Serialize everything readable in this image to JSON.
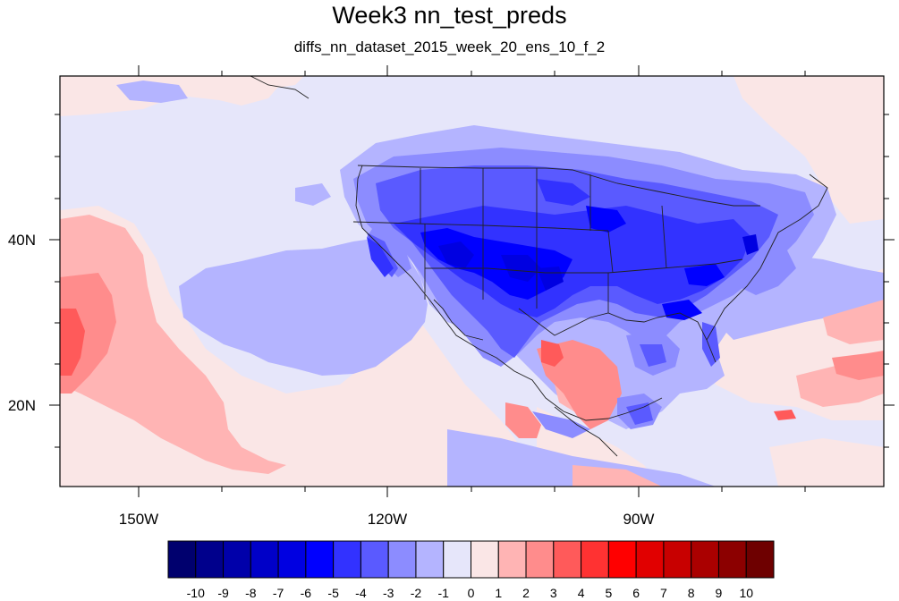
{
  "title": "Week3 nn_test_preds",
  "subtitle": "diffs_nn_dataset_2015_week_20_ens_10_f_2",
  "map": {
    "lon_range": [
      -160,
      -60
    ],
    "lat_range": [
      10,
      60
    ],
    "lon_ticks": [
      {
        "value": -150,
        "label": "150W"
      },
      {
        "value": -120,
        "label": "120W"
      },
      {
        "value": -90,
        "label": "90W"
      }
    ],
    "lat_ticks": [
      {
        "value": 40,
        "label": "40N"
      },
      {
        "value": 20,
        "label": "20N"
      }
    ]
  },
  "colorbar": {
    "labels": [
      "-10",
      "-9",
      "-8",
      "-7",
      "-6",
      "-5",
      "-4",
      "-3",
      "-2",
      "-1",
      "0",
      "1",
      "2",
      "3",
      "4",
      "5",
      "6",
      "7",
      "8",
      "9",
      "10"
    ],
    "colors": [
      "#00006e",
      "#00008c",
      "#0000aa",
      "#0000c8",
      "#0000e1",
      "#0000ff",
      "#3232ff",
      "#5a5aff",
      "#8c8cff",
      "#b4b4ff",
      "#e6e6fa",
      "#fae6e6",
      "#ffb4b4",
      "#ff8c8c",
      "#ff5a5a",
      "#ff3232",
      "#ff0000",
      "#e10000",
      "#c80000",
      "#aa0000",
      "#8c0000",
      "#6e0000"
    ]
  }
}
